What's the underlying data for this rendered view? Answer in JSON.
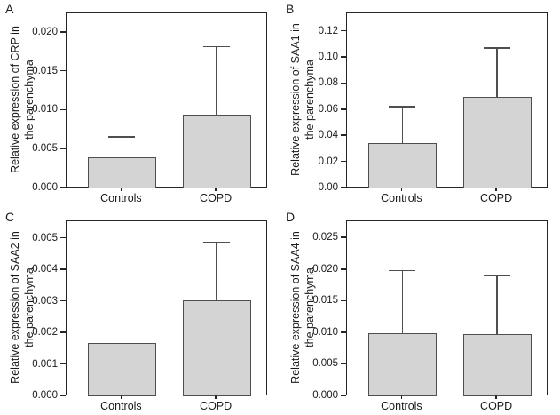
{
  "figure": {
    "background": "#ffffff",
    "bar_fill": "#d4d4d4",
    "bar_border": "#4f4f4f",
    "axis_color": "#262626",
    "text_color": "#1a1a1a"
  },
  "chart_data": [
    {
      "type": "bar",
      "panel": "A",
      "ylabel_line1": "Relative expression of CRP in",
      "ylabel_line2": "the parenchyma",
      "categories": [
        "Controls",
        "COPD"
      ],
      "values": [
        0.004,
        0.0095
      ],
      "errors_upper": [
        0.0027,
        0.0088
      ],
      "ytick_values": [
        0,
        0.005,
        0.01,
        0.015,
        0.02
      ],
      "ytick_labels": [
        "0.000",
        "0.005",
        "0.010",
        "0.015",
        "0.020"
      ],
      "ylim": [
        0,
        0.0225
      ],
      "grid": false,
      "legend": "none"
    },
    {
      "type": "bar",
      "panel": "B",
      "ylabel_line1": "Relative expression of SAA1 in",
      "ylabel_line2": "the parenchyma",
      "categories": [
        "Controls",
        "COPD"
      ],
      "values": [
        0.035,
        0.07
      ],
      "errors_upper": [
        0.028,
        0.038
      ],
      "ytick_values": [
        0,
        0.02,
        0.04,
        0.06,
        0.08,
        0.1,
        0.12
      ],
      "ytick_labels": [
        "0.00",
        "0.02",
        "0.04",
        "0.06",
        "0.08",
        "0.10",
        "0.12"
      ],
      "ylim": [
        0,
        0.134
      ],
      "grid": false,
      "legend": "none"
    },
    {
      "type": "bar",
      "panel": "C",
      "ylabel_line1": "Relative expression of SAA2 in",
      "ylabel_line2": "the parenchyma",
      "categories": [
        "Controls",
        "COPD"
      ],
      "values": [
        0.0017,
        0.00303
      ],
      "errors_upper": [
        0.0014,
        0.00187
      ],
      "ytick_values": [
        0,
        0.001,
        0.002,
        0.003,
        0.004,
        0.005
      ],
      "ytick_labels": [
        "0.000",
        "0.001",
        "0.002",
        "0.003",
        "0.004",
        "0.005"
      ],
      "ylim": [
        0,
        0.00555
      ],
      "grid": false,
      "legend": "none"
    },
    {
      "type": "bar",
      "panel": "D",
      "ylabel_line1": "Relative expression of SAA4 in",
      "ylabel_line2": "the parenchyma",
      "categories": [
        "Controls",
        "COPD"
      ],
      "values": [
        0.01,
        0.0098
      ],
      "errors_upper": [
        0.01,
        0.0094
      ],
      "ytick_values": [
        0,
        0.005,
        0.01,
        0.015,
        0.02,
        0.025
      ],
      "ytick_labels": [
        "0.000",
        "0.005",
        "0.010",
        "0.015",
        "0.020",
        "0.025"
      ],
      "ylim": [
        0,
        0.0277
      ],
      "grid": false,
      "legend": "none"
    }
  ]
}
